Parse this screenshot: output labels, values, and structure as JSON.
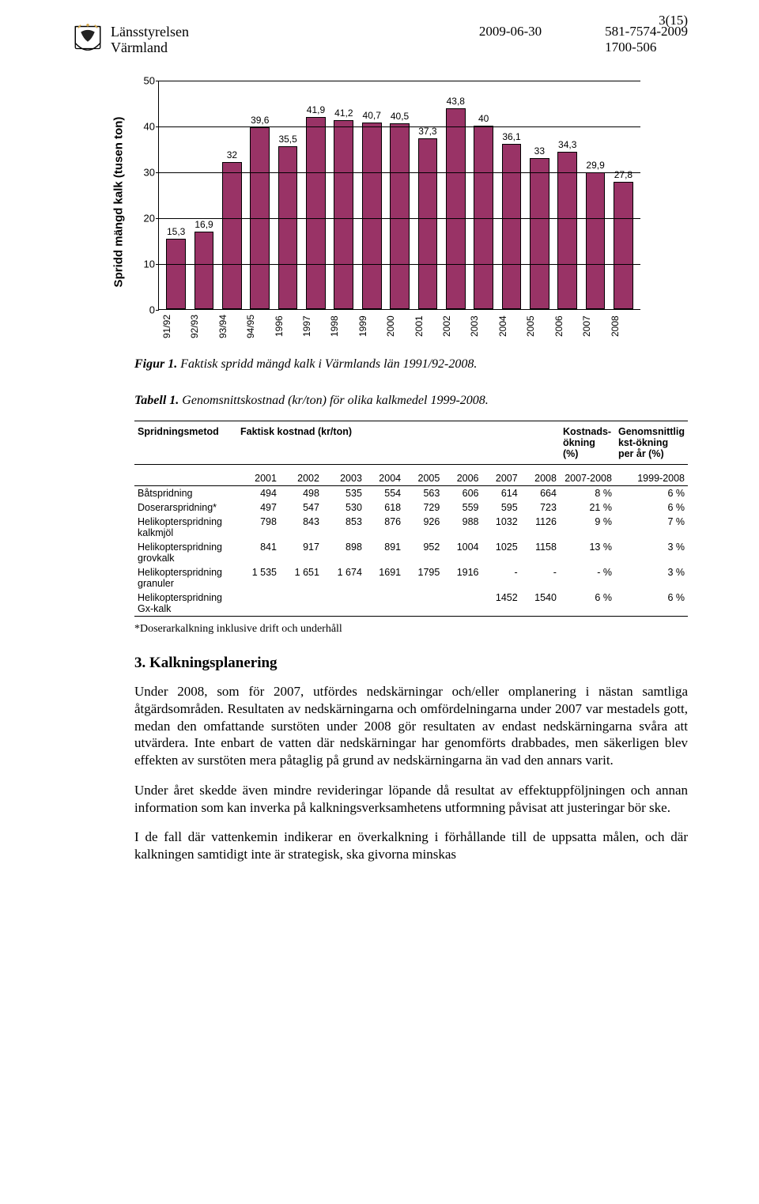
{
  "page_number": "3(15)",
  "header": {
    "org_line1": "Länsstyrelsen",
    "org_line2": "Värmland",
    "date": "2009-06-30",
    "ref1": "581-7574-2009",
    "ref2": "1700-506"
  },
  "chart": {
    "type": "bar",
    "y_label": "Spridd mängd kalk (tusen ton)",
    "y_max": 50,
    "y_ticks": [
      0,
      10,
      20,
      30,
      40,
      50
    ],
    "bar_color": "#993366",
    "bar_border": "#000000",
    "grid_color": "#000000",
    "background": "#ffffff",
    "label_font": "Arial",
    "label_fontsize": 13,
    "value_fontsize": 12,
    "categories": [
      "91/92",
      "92/93",
      "93/94",
      "94/95",
      "1996",
      "1997",
      "1998",
      "1999",
      "2000",
      "2001",
      "2002",
      "2003",
      "2004",
      "2005",
      "2006",
      "2007",
      "2008"
    ],
    "values": [
      15.3,
      16.9,
      32,
      39.6,
      35.5,
      41.9,
      41.2,
      40.7,
      40.5,
      37.3,
      43.8,
      40,
      36.1,
      33,
      34.3,
      29.9,
      27.8
    ],
    "value_labels": [
      "15,3",
      "16,9",
      "32",
      "39,6",
      "35,5",
      "41,9",
      "41,2",
      "40,7",
      "40,5",
      "37,3",
      "43,8",
      "40",
      "36,1",
      "33",
      "34,3",
      "29,9",
      "27,8"
    ]
  },
  "fig_caption": {
    "prefix": "Figur 1.",
    "text": " Faktisk spridd mängd kalk i Värmlands län 1991/92-2008."
  },
  "tab_caption": {
    "prefix": "Tabell 1.",
    "text": " Genomsnittskostnad (kr/ton) för olika kalkmedel 1999-2008."
  },
  "table": {
    "header": {
      "col1": "Spridningsmetod",
      "col2": "Faktisk kostnad (kr/ton)",
      "col3": "Kostnads-ökning (%)",
      "col4": "Genomsnittlig kst-ökning per år (%)"
    },
    "year_cols": [
      "2001",
      "2002",
      "2003",
      "2004",
      "2005",
      "2006",
      "2007",
      "2008",
      "2007-2008",
      "1999-2008"
    ],
    "rows": [
      {
        "label": "Båtspridning",
        "vals": [
          "494",
          "498",
          "535",
          "554",
          "563",
          "606",
          "614",
          "664",
          "8 %",
          "6 %"
        ]
      },
      {
        "label": "Doserarspridning*",
        "vals": [
          "497",
          "547",
          "530",
          "618",
          "729",
          "559",
          "595",
          "723",
          "21 %",
          "6 %"
        ]
      },
      {
        "label": "Helikopterspridning kalkmjöl",
        "vals": [
          "798",
          "843",
          "853",
          "876",
          "926",
          "988",
          "1032",
          "1126",
          "9 %",
          "7 %"
        ]
      },
      {
        "label": "Helikopterspridning grovkalk",
        "vals": [
          "841",
          "917",
          "898",
          "891",
          "952",
          "1004",
          "1025",
          "1158",
          "13 %",
          "3 %"
        ]
      },
      {
        "label": "Helikopterspridning granuler",
        "vals": [
          "1 535",
          "1 651",
          "1 674",
          "1691",
          "1795",
          "1916",
          "-",
          "-",
          "- %",
          "3 %"
        ]
      },
      {
        "label": "Helikopterspridning Gx-kalk",
        "vals": [
          "",
          "",
          "",
          "",
          "",
          "",
          "1452",
          "1540",
          "6 %",
          "6 %"
        ]
      }
    ],
    "footnote": "*Doserarkalkning inklusive drift och underhåll"
  },
  "section": {
    "heading": "3. Kalkningsplanering",
    "p1": "Under 2008, som för 2007, utfördes nedskärningar och/eller omplanering i nästan samtliga åtgärdsområden. Resultaten av nedskärningarna och omfördelningarna under 2007 var mestadels gott, medan den omfattande surstöten under 2008 gör resultaten av endast nedskärningarna svåra att utvärdera. Inte enbart de vatten där nedskärningar har genomförts drabbades, men säkerligen blev effekten av surstöten mera påtaglig på grund av nedskärningarna än vad den annars varit.",
    "p2": "Under året skedde även mindre revideringar löpande då resultat av effektuppföljningen och annan information som kan inverka på kalkningsverksamhetens utformning påvisat att justeringar bör ske.",
    "p3": "I de fall där vattenkemin indikerar en överkalkning i förhållande till de uppsatta målen, och där kalkningen samtidigt inte är strategisk, ska givorna minskas"
  }
}
